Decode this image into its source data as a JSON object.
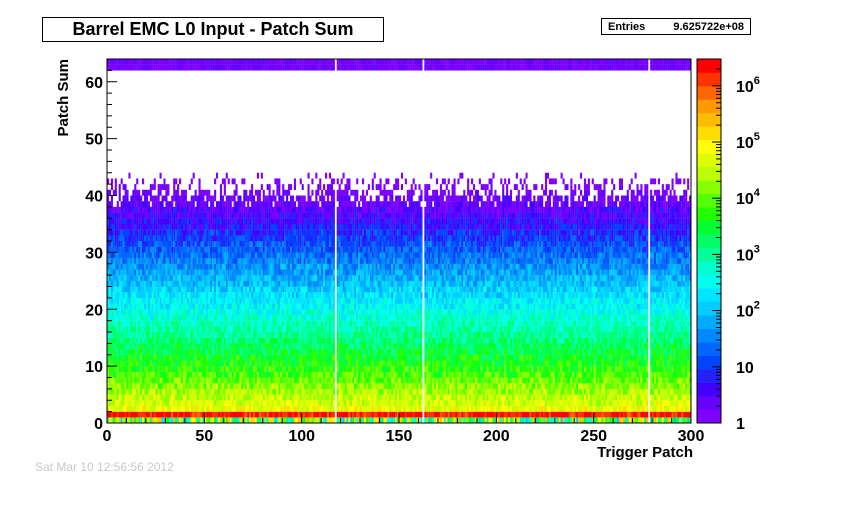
{
  "chart_data": {
    "type": "heatmap",
    "title": "Barrel EMC L0 Input - Patch Sum",
    "xlabel": "Trigger Patch",
    "ylabel": "Patch Sum",
    "xlim": [
      0,
      300
    ],
    "ylim": [
      0,
      64
    ],
    "x_ticks": [
      0,
      50,
      100,
      150,
      200,
      250,
      300
    ],
    "y_ticks": [
      0,
      10,
      20,
      30,
      40,
      50,
      60
    ],
    "x_bins": 300,
    "y_bins": 64,
    "z_scale": "log",
    "zlim": [
      1,
      3000000
    ],
    "z_ticks": [
      {
        "value": 1,
        "base": "1",
        "exp": ""
      },
      {
        "value": 10,
        "base": "10",
        "exp": ""
      },
      {
        "value": 100,
        "base": "10",
        "exp": "2"
      },
      {
        "value": 1000,
        "base": "10",
        "exp": "3"
      },
      {
        "value": 10000,
        "base": "10",
        "exp": "4"
      },
      {
        "value": 100000,
        "base": "10",
        "exp": "5"
      },
      {
        "value": 1000000,
        "base": "10",
        "exp": "6"
      }
    ],
    "empty_patches": [
      117,
      162,
      278
    ],
    "palette": [
      "#8000ff",
      "#6600ff",
      "#4400ff",
      "#2222ff",
      "#0044ff",
      "#0066ff",
      "#0088ff",
      "#00aaff",
      "#00ccff",
      "#00e5ff",
      "#00ffee",
      "#00ffcc",
      "#00ff99",
      "#00ff66",
      "#00ff33",
      "#22ff00",
      "#55ff00",
      "#88ff00",
      "#bbff00",
      "#ddff00",
      "#ffff00",
      "#ffdd00",
      "#ffbb00",
      "#ff9900",
      "#ff6600",
      "#ff3300",
      "#ff0000"
    ],
    "stats": {
      "label": "Entries",
      "value": "9.625722e+08"
    }
  },
  "footer": {
    "date": "Sat Mar 10 12:56:56 2012"
  }
}
